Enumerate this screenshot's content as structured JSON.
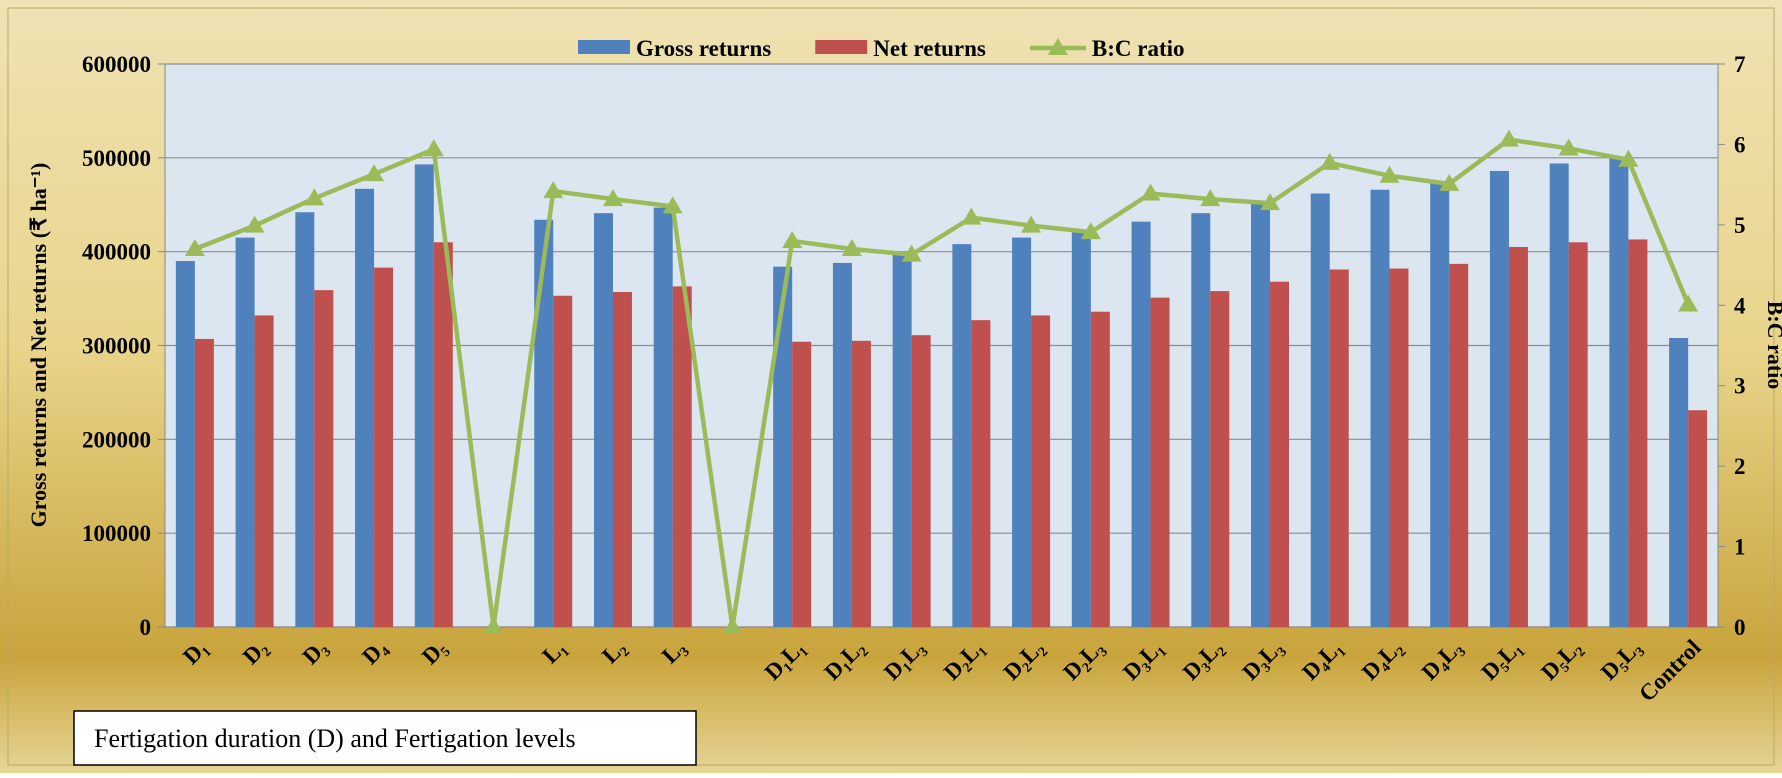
{
  "chart_data": {
    "type": "bar_line",
    "y_axis_label": "Gross returns and Net returns (₹ ha⁻¹)",
    "y2_axis_label": "B:C ratio",
    "annotation": "Fertigation duration (D) and Fertigation levels",
    "categories": [
      "D₁",
      "D₂",
      "D₃",
      "D₄",
      "D₅",
      null,
      "L₁",
      "L₂",
      "L₃",
      null,
      "D₁L₁",
      "D₁L₂",
      "D₁L₃",
      "D₂L₁",
      "D₂L₂",
      "D₂L₃",
      "D₃L₁",
      "D₃L₂",
      "D₃L₃",
      "D₄L₁",
      "D₄L₂",
      "D₄L₃",
      "D₅L₁",
      "D₅L₂",
      "D₅L₃",
      "Control"
    ],
    "series": [
      {
        "name": "Gross returns",
        "color": "#4f81bd",
        "kind": "bar",
        "values": [
          390000,
          415000,
          442000,
          467000,
          493000,
          null,
          434000,
          441000,
          447000,
          null,
          384000,
          388000,
          397000,
          408000,
          415000,
          421000,
          432000,
          441000,
          452000,
          462000,
          466000,
          474000,
          486000,
          494000,
          500000,
          308000
        ]
      },
      {
        "name": "Net returns",
        "color": "#c0504d",
        "kind": "bar",
        "values": [
          307000,
          332000,
          359000,
          383000,
          410000,
          null,
          353000,
          357000,
          363000,
          null,
          304000,
          305000,
          311000,
          327000,
          332000,
          336000,
          351000,
          358000,
          368000,
          381000,
          382000,
          387000,
          405000,
          410000,
          413000,
          231000
        ]
      },
      {
        "name": "B:C ratio",
        "color": "#9bbb59",
        "kind": "line",
        "axis": "y2",
        "values": [
          4.7,
          4.99,
          5.33,
          5.63,
          5.94,
          0,
          5.42,
          5.32,
          5.23,
          0,
          4.8,
          4.7,
          4.63,
          5.09,
          4.99,
          4.91,
          5.39,
          5.32,
          5.27,
          5.77,
          5.61,
          5.51,
          6.06,
          5.95,
          5.81,
          4.01
        ]
      }
    ],
    "ylim": [
      0,
      600000
    ],
    "yticks": [
      0,
      100000,
      200000,
      300000,
      400000,
      500000,
      600000
    ],
    "y2lim": [
      0,
      7
    ],
    "y2ticks": [
      0,
      1,
      2,
      3,
      4,
      5,
      6,
      7
    ],
    "grid": true,
    "legend": "top"
  }
}
